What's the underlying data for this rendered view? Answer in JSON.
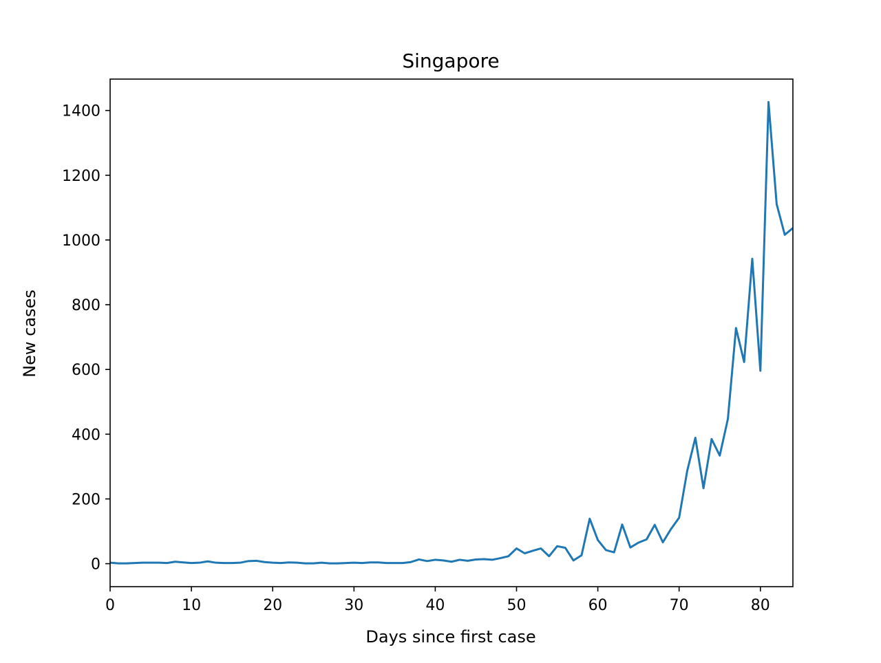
{
  "chart_data": {
    "type": "line",
    "title": "Singapore",
    "xlabel": "Days since first case",
    "ylabel": "New cases",
    "xlim": [
      0,
      84
    ],
    "ylim": [
      -71,
      1497
    ],
    "xticks": [
      0,
      10,
      20,
      30,
      40,
      50,
      60,
      70,
      80
    ],
    "yticks": [
      0,
      200,
      400,
      600,
      800,
      1000,
      1200,
      1400
    ],
    "grid": false,
    "legend": "none",
    "colors": {
      "line": "#1f77b4"
    },
    "series": [
      {
        "x": [
          0,
          1,
          2,
          3,
          4,
          5,
          6,
          7,
          8,
          9,
          10,
          11,
          12,
          13,
          14,
          15,
          16,
          17,
          18,
          19,
          20,
          21,
          22,
          23,
          24,
          25,
          26,
          27,
          28,
          29,
          30,
          31,
          32,
          33,
          34,
          35,
          36,
          37,
          38,
          39,
          40,
          41,
          42,
          43,
          44,
          45,
          46,
          47,
          48,
          49,
          50,
          51,
          52,
          53,
          54,
          55,
          56,
          57,
          58,
          59,
          60,
          61,
          62,
          63,
          64,
          65,
          66,
          67,
          68,
          69,
          70,
          71,
          72,
          73,
          74,
          75,
          76,
          77,
          78,
          79,
          80,
          81,
          82,
          83,
          84
        ],
        "values": [
          3,
          1,
          1,
          2,
          3,
          3,
          3,
          2,
          6,
          4,
          2,
          3,
          7,
          3,
          2,
          2,
          3,
          8,
          9,
          5,
          3,
          2,
          4,
          3,
          1,
          1,
          3,
          1,
          1,
          2,
          3,
          2,
          4,
          4,
          2,
          2,
          2,
          5,
          13,
          8,
          12,
          10,
          6,
          12,
          9,
          13,
          14,
          12,
          17,
          23,
          47,
          32,
          40,
          47,
          23,
          54,
          49,
          10,
          26,
          139,
          73,
          42,
          35,
          121,
          50,
          65,
          75,
          120,
          66,
          107,
          142,
          287,
          389,
          233,
          385,
          334,
          447,
          728,
          623,
          942,
          596,
          1426,
          1111,
          1016,
          1037
        ]
      }
    ]
  }
}
